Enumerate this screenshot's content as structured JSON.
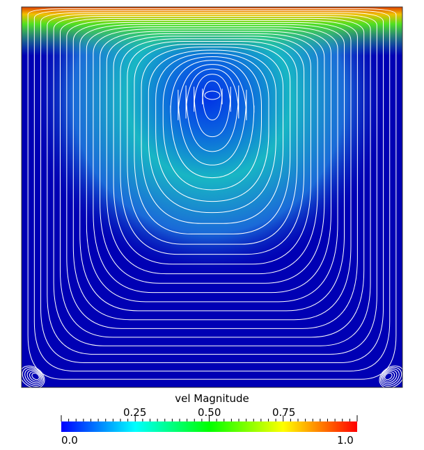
{
  "colorbar": {
    "title": "vel Magnitude",
    "min_label": "0.0",
    "max_label": "1.0",
    "tick_labels": [
      "0.25",
      "0.50",
      "0.75"
    ],
    "range": [
      0.0,
      1.0
    ],
    "colors": [
      "#0000ff",
      "#00ffff",
      "#00ff00",
      "#ffff00",
      "#ff0000"
    ]
  },
  "field": {
    "background_color": "#0000b4",
    "streamline_color": "#ffffff",
    "lid_color": "#d84000"
  }
}
